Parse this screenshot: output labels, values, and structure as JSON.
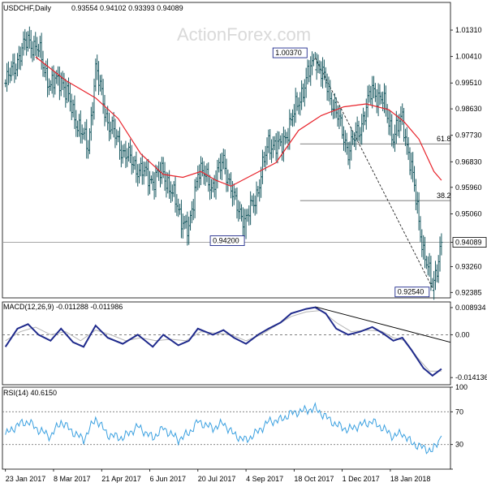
{
  "header": {
    "symbol": "USDCHF,Daily",
    "ohlc": "0.93554 0.94102 0.93393 0.94089"
  },
  "watermark": "ActionForex.com",
  "colors": {
    "bars": "#1a5a62",
    "ma": "#e8232b",
    "macd": "#1f2a8c",
    "signal": "#b5b5b5",
    "rsi": "#3aa0e0",
    "level": "#8a8a8a"
  },
  "chart_data": [
    {
      "type": "ohlc",
      "panel": "price",
      "series": [
        {
          "name": "USDCHF,Daily",
          "x": [
            "23 Jan 2017",
            "8 Mar 2017",
            "21 Apr 2017",
            "6 Jun 2017",
            "20 Jul 2017",
            "4 Sep 2017",
            "18 Oct 2017",
            "1 Dec 2017",
            "18 Jan 2018"
          ],
          "values": [
            0.995,
            1.005,
            1.002,
            0.967,
            0.946,
            0.962,
            1.0037,
            0.978,
            0.9409
          ]
        }
      ],
      "close_path": [
        [
          0,
          0.995
        ],
        [
          8,
          1.003
        ],
        [
          15,
          1.01
        ],
        [
          22,
          1.006
        ],
        [
          30,
          0.994
        ],
        [
          37,
          0.997
        ],
        [
          45,
          0.985
        ],
        [
          55,
          0.973
        ],
        [
          60,
          1.0
        ],
        [
          68,
          0.982
        ],
        [
          78,
          0.972
        ],
        [
          88,
          0.966
        ],
        [
          98,
          0.962
        ],
        [
          105,
          0.965
        ],
        [
          115,
          0.952
        ],
        [
          122,
          0.944
        ],
        [
          128,
          0.966
        ],
        [
          138,
          0.96
        ],
        [
          145,
          0.969
        ],
        [
          152,
          0.955
        ],
        [
          160,
          0.948
        ],
        [
          168,
          0.959
        ],
        [
          175,
          0.975
        ],
        [
          183,
          0.973
        ],
        [
          190,
          0.982
        ],
        [
          200,
          0.996
        ],
        [
          206,
          1.0037
        ],
        [
          213,
          0.995
        ],
        [
          220,
          0.985
        ],
        [
          228,
          0.972
        ],
        [
          236,
          0.98
        ],
        [
          244,
          0.993
        ],
        [
          251,
          0.989
        ],
        [
          258,
          0.977
        ],
        [
          264,
          0.983
        ],
        [
          270,
          0.966
        ],
        [
          278,
          0.938
        ],
        [
          284,
          0.9254
        ],
        [
          290,
          0.9409
        ]
      ],
      "moving_average": [
        [
          20,
          1.004
        ],
        [
          40,
          0.996
        ],
        [
          60,
          0.99
        ],
        [
          75,
          0.983
        ],
        [
          90,
          0.971
        ],
        [
          105,
          0.964
        ],
        [
          118,
          0.963
        ],
        [
          130,
          0.965
        ],
        [
          140,
          0.962
        ],
        [
          150,
          0.96
        ],
        [
          165,
          0.964
        ],
        [
          180,
          0.968
        ],
        [
          195,
          0.979
        ],
        [
          210,
          0.984
        ],
        [
          225,
          0.987
        ],
        [
          240,
          0.988
        ],
        [
          255,
          0.986
        ],
        [
          265,
          0.982
        ],
        [
          275,
          0.976
        ],
        [
          285,
          0.965
        ],
        [
          290,
          0.962
        ]
      ],
      "yticks": [
        1.0131,
        1.0041,
        0.9951,
        0.9863,
        0.9773,
        0.9683,
        0.9596,
        0.9506,
        0.94089,
        0.9326,
        0.92385
      ],
      "ylim": [
        0.922,
        1.0225
      ],
      "annotations": [
        {
          "label": "1.00370",
          "x": 206,
          "y": 1.0037
        },
        {
          "label": "0.94200",
          "x": 160,
          "y": 0.942
        },
        {
          "label": "0.92540",
          "x": 284,
          "y": 0.9254
        },
        {
          "label": "61.8",
          "x": 290,
          "y": 0.9744
        },
        {
          "label": "38.2",
          "x": 290,
          "y": 0.9551
        }
      ],
      "current_price": 0.94089
    },
    {
      "type": "line",
      "panel": "macd",
      "title": "MACD(12,26,9) -0.011288 -0.011986",
      "series": [
        {
          "name": "MACD",
          "points": [
            [
              0,
              -0.004
            ],
            [
              8,
              0.002
            ],
            [
              15,
              0.0035
            ],
            [
              22,
              0.0
            ],
            [
              30,
              -0.002
            ],
            [
              37,
              0.002
            ],
            [
              45,
              -0.0025
            ],
            [
              52,
              -0.004
            ],
            [
              60,
              0.003
            ],
            [
              68,
              -0.001
            ],
            [
              78,
              -0.003
            ],
            [
              88,
              0.0
            ],
            [
              98,
              -0.004
            ],
            [
              105,
              0.0
            ],
            [
              115,
              -0.0035
            ],
            [
              122,
              -0.002
            ],
            [
              128,
              0.002
            ],
            [
              138,
              0.0
            ],
            [
              145,
              0.0015
            ],
            [
              152,
              -0.001
            ],
            [
              160,
              -0.003
            ],
            [
              168,
              0.0
            ],
            [
              175,
              0.002
            ],
            [
              183,
              0.004
            ],
            [
              190,
              0.007
            ],
            [
              200,
              0.0085
            ],
            [
              206,
              0.009
            ],
            [
              213,
              0.007
            ],
            [
              220,
              0.002
            ],
            [
              228,
              0.0
            ],
            [
              236,
              0.001
            ],
            [
              244,
              0.0025
            ],
            [
              251,
              0.0005
            ],
            [
              258,
              -0.002
            ],
            [
              264,
              -0.001
            ],
            [
              270,
              -0.005
            ],
            [
              278,
              -0.011
            ],
            [
              284,
              -0.0135
            ],
            [
              290,
              -0.0113
            ]
          ]
        },
        {
          "name": "Signal",
          "points": [
            [
              0,
              -0.002
            ],
            [
              10,
              0.001
            ],
            [
              20,
              0.0025
            ],
            [
              30,
              0.0
            ],
            [
              40,
              0.001
            ],
            [
              50,
              -0.002
            ],
            [
              60,
              0.0015
            ],
            [
              70,
              0.0
            ],
            [
              80,
              -0.002
            ],
            [
              90,
              -0.001
            ],
            [
              100,
              -0.002
            ],
            [
              110,
              -0.0015
            ],
            [
              120,
              -0.002
            ],
            [
              130,
              0.001
            ],
            [
              140,
              0.0005
            ],
            [
              150,
              0.0
            ],
            [
              160,
              -0.002
            ],
            [
              170,
              0.0
            ],
            [
              180,
              0.003
            ],
            [
              190,
              0.006
            ],
            [
              200,
              0.0075
            ],
            [
              210,
              0.008
            ],
            [
              220,
              0.004
            ],
            [
              230,
              0.001
            ],
            [
              240,
              0.0015
            ],
            [
              250,
              0.0012
            ],
            [
              258,
              -0.001
            ],
            [
              266,
              -0.002
            ],
            [
              274,
              -0.0075
            ],
            [
              282,
              -0.012
            ],
            [
              290,
              -0.012
            ]
          ]
        }
      ],
      "yticks": [
        0.008934,
        0.0,
        -0.014136
      ],
      "ylim": [
        -0.0165,
        0.0108
      ]
    },
    {
      "type": "line",
      "panel": "rsi",
      "title": "RSI(14) 40.6150",
      "series": [
        {
          "name": "RSI",
          "points": [
            [
              0,
              42
            ],
            [
              8,
              54
            ],
            [
              15,
              58
            ],
            [
              22,
              48
            ],
            [
              30,
              40
            ],
            [
              37,
              58
            ],
            [
              45,
              45
            ],
            [
              52,
              36
            ],
            [
              60,
              62
            ],
            [
              68,
              42
            ],
            [
              78,
              38
            ],
            [
              88,
              52
            ],
            [
              98,
              38
            ],
            [
              105,
              50
            ],
            [
              115,
              36
            ],
            [
              122,
              44
            ],
            [
              128,
              58
            ],
            [
              138,
              50
            ],
            [
              145,
              56
            ],
            [
              152,
              42
            ],
            [
              160,
              35
            ],
            [
              168,
              46
            ],
            [
              175,
              58
            ],
            [
              183,
              60
            ],
            [
              190,
              68
            ],
            [
              200,
              72
            ],
            [
              206,
              74
            ],
            [
              213,
              64
            ],
            [
              220,
              54
            ],
            [
              228,
              48
            ],
            [
              236,
              54
            ],
            [
              244,
              58
            ],
            [
              251,
              50
            ],
            [
              258,
              40
            ],
            [
              264,
              44
            ],
            [
              270,
              32
            ],
            [
              278,
              26
            ],
            [
              284,
              22
            ],
            [
              290,
              40.6
            ]
          ]
        }
      ],
      "yticks": [
        100,
        70,
        30,
        0
      ],
      "ylim": [
        0,
        100
      ]
    }
  ],
  "x_axis": {
    "labels": [
      "23 Jan 2017",
      "8 Mar 2017",
      "21 Apr 2017",
      "6 Jun 2017",
      "20 Jul 2017",
      "4 Sep 2017",
      "18 Oct 2017",
      "1 Dec 2017",
      "18 Jan 2018"
    ],
    "positions": [
      0,
      32,
      64,
      96,
      128,
      160,
      192,
      224,
      256
    ],
    "domain": [
      -2,
      296
    ]
  }
}
